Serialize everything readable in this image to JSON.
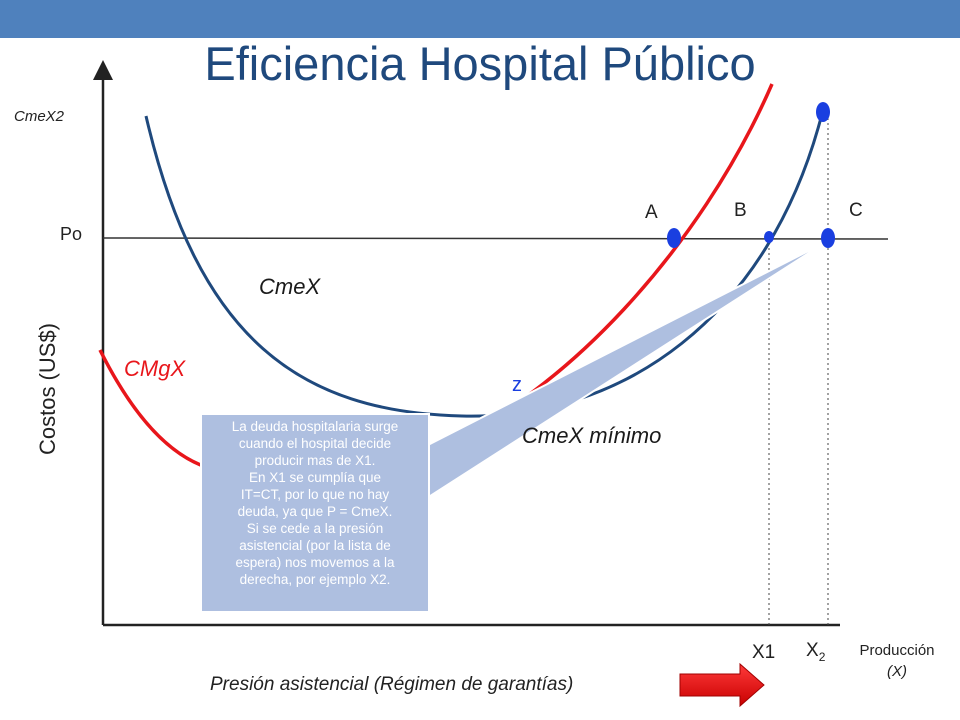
{
  "title": "Eficiencia Hospital Público",
  "labels": {
    "cmex2": "CmeX2",
    "po": "Po",
    "y_axis": "Costos (US$)",
    "cmex": "CmeX",
    "cmgx": "CMgX",
    "z": "z",
    "cmex_min": "CmeX mínimo",
    "point_a": "A",
    "point_b": "B",
    "point_c": "C",
    "x1": "X1",
    "x2_base": "X",
    "x2_sub": "2",
    "x_axis_line1": "Producción",
    "x_axis_line2": "(X)",
    "footer": "Presión asistencial (Régimen de garantías)"
  },
  "callout": {
    "lines": [
      "La deuda hospitalaria surge",
      "cuando el hospital decide",
      "producir mas de X1.",
      "En X1 se cumplía que",
      "IT=CT, por lo que no hay",
      "deuda, ya que P = CmeX.",
      "Si se cede a la presión",
      "asistencial (por la lista de",
      "espera) nos movemos a la",
      "derecha, por ejemplo X2."
    ]
  },
  "colors": {
    "header_bar": "#4f81bd",
    "title": "#1f497d",
    "cmex_curve": "#1f497d",
    "cmgx_curve": "#e8161b",
    "points": "#1a3fe0",
    "callout_fill": "#aebfe0",
    "arrow": "#e8161b"
  }
}
